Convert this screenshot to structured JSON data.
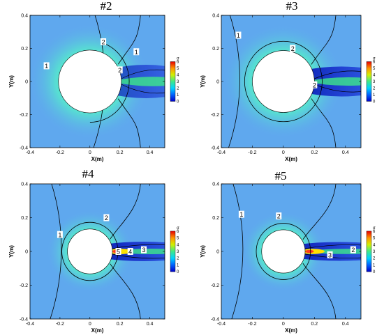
{
  "colors": {
    "field_far": "#5fa8ee",
    "field_mid": "#57dfd2",
    "field_near": "#3ee88a",
    "wake_dark": "#1c3cd8",
    "wake_deep": "#0a18b8",
    "hot": "#ffe000",
    "hot_core": "#ff3b1f",
    "cylinder": "#ffffff",
    "contour": "#000000"
  },
  "chart_data": [
    {
      "type": "contour",
      "title": "#2",
      "xlabel": "X(m)",
      "ylabel": "Y(m)",
      "xlim": [
        -0.4,
        0.5
      ],
      "ylim": [
        -0.4,
        0.4
      ],
      "xticks": [
        "-0.4",
        "-0.2",
        "0",
        "0.2",
        "0.4"
      ],
      "yticks": [
        "-0.4",
        "-0.2",
        "0",
        "0.2",
        "0.4"
      ],
      "cylinder": {
        "cx": 0.0,
        "cy": 0.0,
        "r": 0.21
      },
      "colorbar": {
        "title": "σ",
        "ticks": [
          "0",
          "1",
          "2",
          "3",
          "4",
          "5",
          "6"
        ]
      },
      "contour_labels": [
        {
          "text": "2",
          "x": 0.09,
          "y": 0.24
        },
        {
          "text": "1",
          "x": -0.29,
          "y": 0.095
        },
        {
          "text": "1",
          "x": 0.31,
          "y": 0.18
        },
        {
          "text": "2",
          "x": 0.2,
          "y": 0.07
        }
      ],
      "wake": "weak"
    },
    {
      "type": "contour",
      "title": "#3",
      "xlabel": "X(m)",
      "ylabel": "Y(m)",
      "xlim": [
        -0.4,
        0.5
      ],
      "ylim": [
        -0.4,
        0.4
      ],
      "xticks": [
        "-0.4",
        "-0.2",
        "0",
        "0.2",
        "0.4"
      ],
      "yticks": [
        "-0.4",
        "-0.2",
        "0",
        "0.2",
        "0.4"
      ],
      "cylinder": {
        "cx": 0.0,
        "cy": 0.0,
        "r": 0.2
      },
      "colorbar": {
        "title": "σ",
        "ticks": [
          "0",
          "1",
          "2",
          "3",
          "4",
          "5",
          "6"
        ]
      },
      "contour_labels": [
        {
          "text": "1",
          "x": -0.29,
          "y": 0.28
        },
        {
          "text": "2",
          "x": 0.06,
          "y": 0.2
        },
        {
          "text": "2",
          "x": 0.2,
          "y": -0.02
        }
      ],
      "wake": "strong"
    },
    {
      "type": "contour",
      "title": "#4",
      "xlabel": "X(m)",
      "ylabel": "Y(m)",
      "xlim": [
        -0.4,
        0.5
      ],
      "ylim": [
        -0.4,
        0.4
      ],
      "xticks": [
        "-0.4",
        "-0.2",
        "0",
        "0.2",
        "0.4"
      ],
      "yticks": [
        "-0.4",
        "-0.2",
        "0",
        "0.2",
        "0.4"
      ],
      "cylinder": {
        "cx": 0.0,
        "cy": 0.0,
        "r": 0.15
      },
      "colorbar": {
        "title": "σ",
        "ticks": [
          "0",
          "1",
          "2",
          "3",
          "4",
          "5",
          "6"
        ]
      },
      "contour_labels": [
        {
          "text": "1",
          "x": -0.2,
          "y": 0.1
        },
        {
          "text": "2",
          "x": 0.11,
          "y": 0.2
        },
        {
          "text": "5",
          "x": 0.19,
          "y": 0.0
        },
        {
          "text": "4",
          "x": 0.27,
          "y": 0.0
        },
        {
          "text": "3",
          "x": 0.36,
          "y": 0.01
        }
      ],
      "wake": "hot"
    },
    {
      "type": "contour",
      "title": "#5",
      "xlabel": "X(m)",
      "ylabel": "Y(m)",
      "xlim": [
        -0.4,
        0.5
      ],
      "ylim": [
        -0.4,
        0.4
      ],
      "xticks": [
        "-0.4",
        "-0.2",
        "0",
        "0.2",
        "0.4"
      ],
      "yticks": [
        "-0.4",
        "-0.2",
        "0",
        "0.2",
        "0.4"
      ],
      "cylinder": {
        "cx": 0.0,
        "cy": 0.0,
        "r": 0.14
      },
      "colorbar": {
        "title": "σ",
        "ticks": [
          "0",
          "1",
          "2",
          "3",
          "4",
          "5",
          "6"
        ]
      },
      "contour_labels": [
        {
          "text": "1",
          "x": -0.27,
          "y": 0.22
        },
        {
          "text": "2",
          "x": -0.03,
          "y": 0.21
        },
        {
          "text": "3",
          "x": 0.3,
          "y": -0.02
        },
        {
          "text": "2",
          "x": 0.45,
          "y": 0.01
        }
      ],
      "wake": "hot"
    }
  ]
}
